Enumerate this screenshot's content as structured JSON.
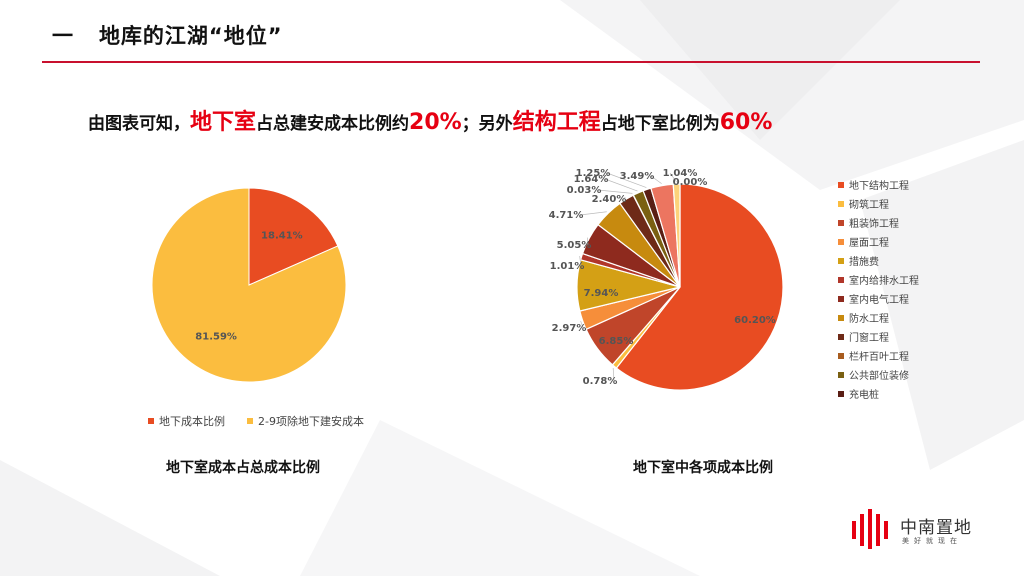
{
  "slide": {
    "title_number": "一",
    "title_text": "地库的江湖“地位”",
    "headline": {
      "p1": "由图表可知，",
      "h1": "地下室",
      "p2": "占总建安成本比例约",
      "h2": "20%",
      "p3": "；另外",
      "h3": "结构工程",
      "p4": "占地下室比例为",
      "h4": "60%"
    },
    "caption_left": "地下室成本占总成本比例",
    "caption_right": "地下室中各项成本比例"
  },
  "logo": {
    "name": "中南置地",
    "slogan": "美好就现在"
  },
  "colors": {
    "accent": "#e60012",
    "rule": "#c8102e"
  },
  "chart_data": [
    {
      "type": "pie",
      "title": "地下室成本占总成本比例",
      "legend_position": "bottom",
      "slices": [
        {
          "label": "地下成本比例",
          "value": 18.41,
          "value_label": "18.41%",
          "color": "#e84c22"
        },
        {
          "label": "2-9项除地下建安成本",
          "value": 81.59,
          "value_label": "81.59%",
          "color": "#fbbd3f"
        }
      ]
    },
    {
      "type": "pie",
      "title": "地下室中各项成本比例",
      "legend_position": "right",
      "slices": [
        {
          "label": "地下结构工程",
          "value": 60.2,
          "value_label": "60.20%",
          "color": "#e84c22"
        },
        {
          "label": "砌筑工程",
          "value": 0.78,
          "value_label": "0.78%",
          "color": "#fbbd3f"
        },
        {
          "label": "粗装饰工程",
          "value": 6.85,
          "value_label": "6.85%",
          "color": "#c0452a"
        },
        {
          "label": "屋面工程",
          "value": 2.97,
          "value_label": "2.97%",
          "color": "#f68e3a"
        },
        {
          "label": "措施费",
          "value": 7.94,
          "value_label": "7.94%",
          "color": "#d4a015"
        },
        {
          "label": "室内给排水工程",
          "value": 1.01,
          "value_label": "1.01%",
          "color": "#b1362a"
        },
        {
          "label": "室内电气工程",
          "value": 5.05,
          "value_label": "5.05%",
          "color": "#8e2a1e"
        },
        {
          "label": "防水工程",
          "value": 4.71,
          "value_label": "4.71%",
          "color": "#c78a0f"
        },
        {
          "label": "门窗工程",
          "value": 2.4,
          "value_label": "2.40%",
          "color": "#6e2a17"
        },
        {
          "label": "栏杆百叶工程",
          "value": 0.03,
          "value_label": "0.03%",
          "color": "#a85c1f"
        },
        {
          "label": "公共部位装修",
          "value": 1.64,
          "value_label": "1.64%",
          "color": "#7a6012"
        },
        {
          "label": "充电桩",
          "value": 1.25,
          "value_label": "1.25%",
          "color": "#5a1e14"
        },
        {
          "label": "",
          "value": 3.49,
          "value_label": "3.49%",
          "color": "#ec7560"
        },
        {
          "label": "",
          "value": 1.04,
          "value_label": "1.04%",
          "color": "#fcd27a"
        },
        {
          "label": "",
          "value": 0.0,
          "value_label": "0.00%",
          "color": "#f5a88a"
        }
      ]
    }
  ]
}
